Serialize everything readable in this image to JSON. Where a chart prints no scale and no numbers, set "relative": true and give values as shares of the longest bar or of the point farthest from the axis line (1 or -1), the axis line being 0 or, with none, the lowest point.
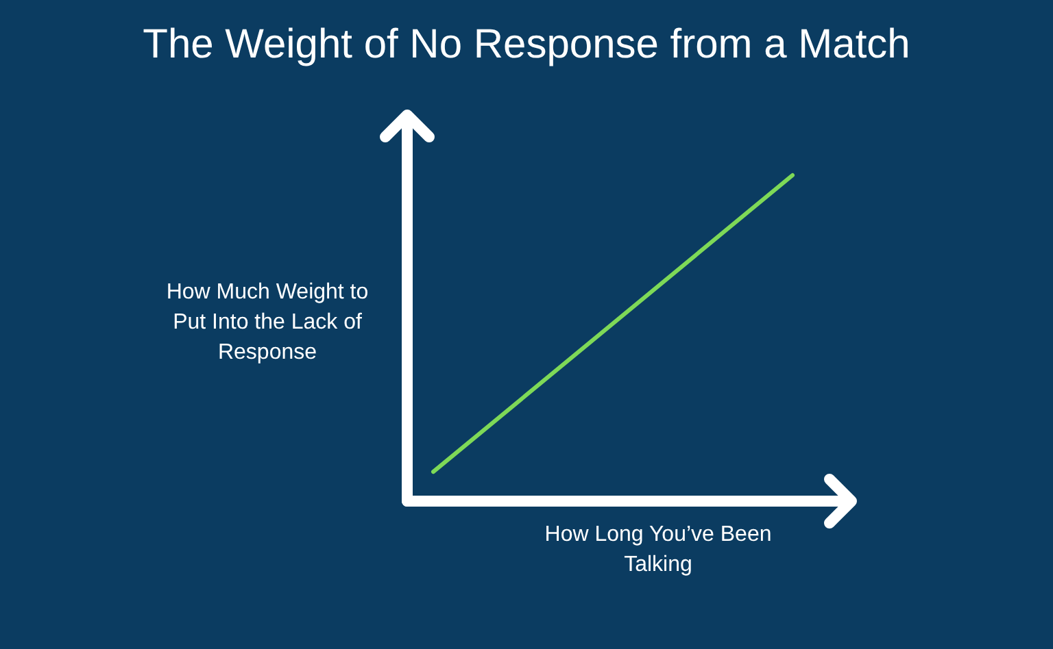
{
  "chart_data": {
    "type": "line",
    "title": "The Weight of No Response from a Match",
    "xlabel": "How Long You’ve Been Talking",
    "ylabel": "How Much Weight to Put Into the Lack of Response",
    "relative": true,
    "categories": [
      null,
      null
    ],
    "series": [
      {
        "color": "#7ed957",
        "values": [
          0.09,
          1
        ]
      }
    ]
  }
}
